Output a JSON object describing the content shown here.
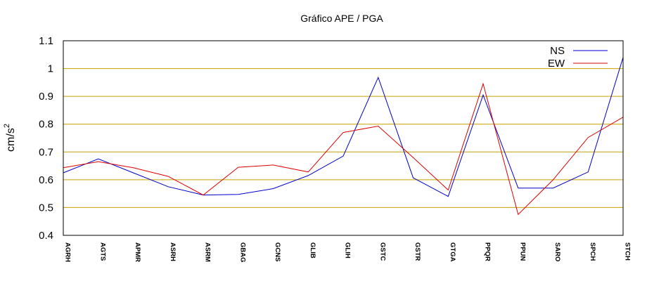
{
  "chart_data": {
    "type": "line",
    "title": "Gráfico  APE / PGA",
    "ylabel": "cm/s",
    "ylabel_superscript": "2",
    "ylim": [
      0.4,
      1.1
    ],
    "yticks": [
      "0.4",
      "0.5",
      "0.6",
      "0.7",
      "0.8",
      "0.9",
      "1",
      "1.1"
    ],
    "grid": true,
    "grid_color": "#c8a000",
    "legend_position": "top-right",
    "categories": [
      "AGRH",
      "AGTS",
      "APMR",
      "ASRH",
      "ASRM",
      "GBAG",
      "GCNS",
      "GLIB",
      "GLIH",
      "GSTC",
      "GSTR",
      "GTGA",
      "PPQR",
      "PPUN",
      "SARO",
      "SPCH",
      "STCH"
    ],
    "series": [
      {
        "name": "NS",
        "color": "#0000cc",
        "values": [
          0.625,
          0.675,
          0.625,
          0.575,
          0.545,
          0.547,
          0.568,
          0.615,
          0.685,
          0.968,
          0.607,
          0.54,
          0.905,
          0.57,
          0.57,
          0.628,
          1.04
        ]
      },
      {
        "name": "EW",
        "color": "#dd0000",
        "values": [
          0.643,
          0.665,
          0.643,
          0.612,
          0.545,
          0.645,
          0.653,
          0.628,
          0.77,
          0.793,
          0.68,
          0.563,
          0.945,
          0.475,
          0.6,
          0.752,
          0.825
        ]
      }
    ]
  }
}
